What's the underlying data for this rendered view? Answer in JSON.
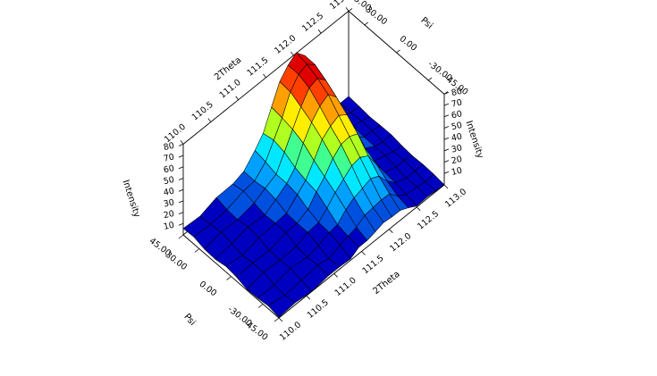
{
  "chart_data": {
    "type": "surface3d",
    "x_axis": {
      "label": "2Theta",
      "range": [
        110.0,
        113.0
      ],
      "ticks": [
        "110.0",
        "110.5",
        "111.0",
        "111.5",
        "112.0",
        "112.5",
        "113.0"
      ]
    },
    "y_axis": {
      "label": "Psi",
      "range": [
        -45.0,
        45.0
      ],
      "ticks": [
        "-45.00",
        "-30.00",
        "0.00",
        "30.00",
        "45.00"
      ]
    },
    "z_axis": {
      "label": "Intensity",
      "label_right": "Intensity",
      "range": [
        0,
        80
      ],
      "ticks": [
        "10",
        "20",
        "30",
        "40",
        "50",
        "60",
        "70",
        "80"
      ]
    },
    "back_axes": {
      "two_theta_ticks": [
        "110.0",
        "110.5",
        "111.0",
        "111.5",
        "112.0",
        "112.5",
        "113.0"
      ],
      "psi_ticks": [
        "45.00",
        "30.00",
        "0.00",
        "-30.00",
        "-45.00"
      ],
      "psi_label": "Psi",
      "two_theta_label": "2Theta"
    },
    "surface": {
      "two_theta": [
        110.0,
        110.3,
        110.6,
        110.9,
        111.1,
        111.3,
        111.45,
        111.6,
        111.75,
        111.9,
        112.05,
        112.2,
        112.35,
        112.5,
        112.7,
        112.85,
        113.0
      ],
      "psi": [
        -45,
        -35,
        -25,
        -15,
        -5,
        5,
        15,
        25,
        35,
        45
      ],
      "peak_profile": [
        5,
        6,
        8,
        10,
        14,
        22,
        34,
        50,
        66,
        76,
        80,
        72,
        40,
        14,
        7,
        5,
        4
      ],
      "psi_scaling": [
        0.12,
        0.2,
        0.32,
        0.46,
        0.6,
        0.72,
        0.84,
        0.93,
        0.99,
        1.0
      ]
    },
    "colormap": [
      "#0000c0",
      "#0050e0",
      "#00a0ff",
      "#00e8ff",
      "#40ff90",
      "#b0ff20",
      "#ffee00",
      "#ffa000",
      "#ff4000",
      "#e00000"
    ]
  }
}
